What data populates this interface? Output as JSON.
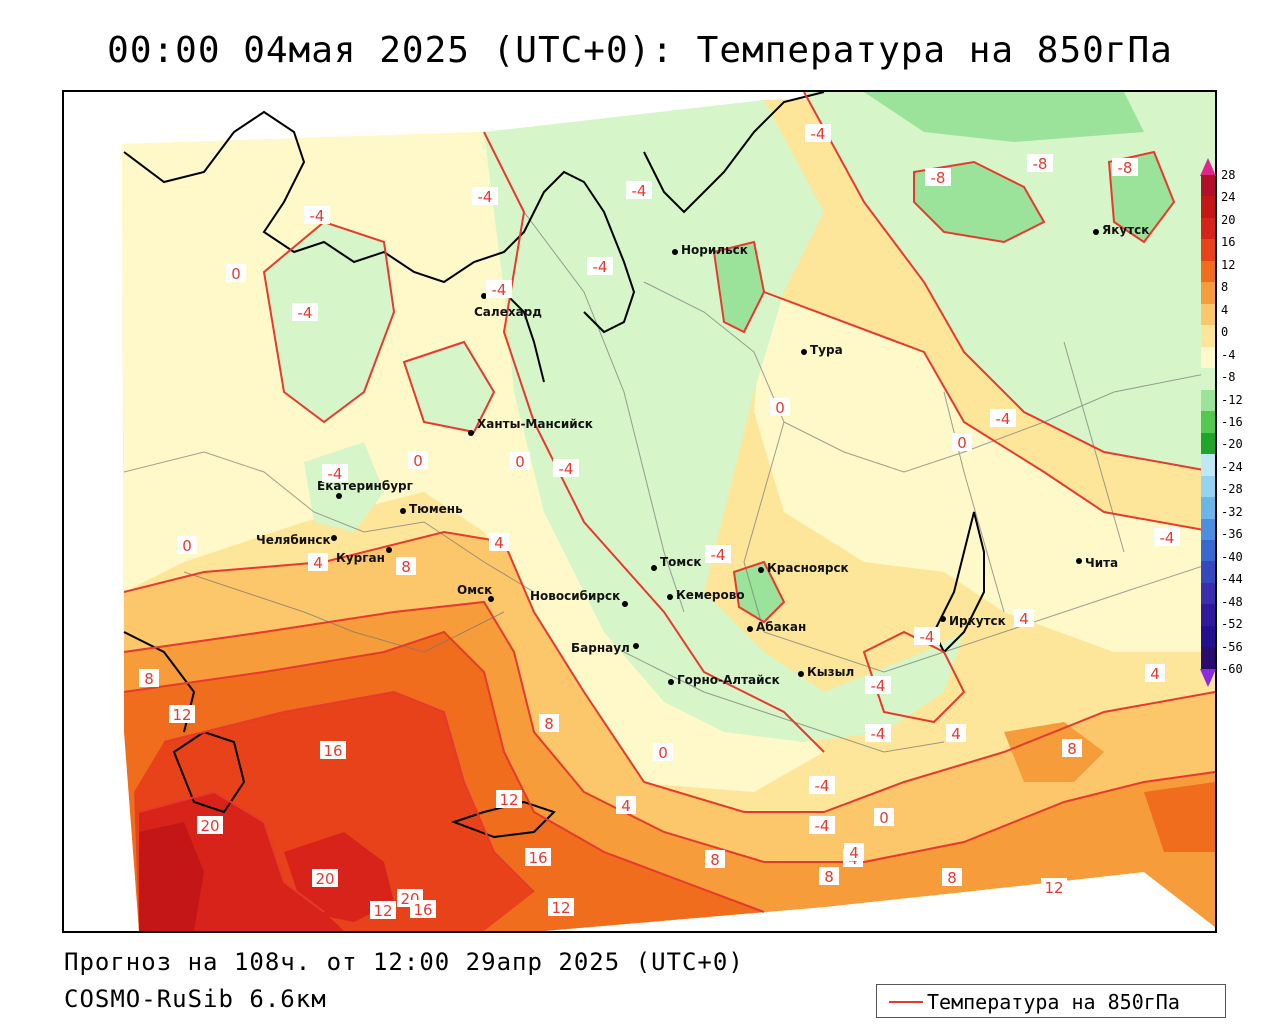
{
  "title": "00:00 04мая 2025 (UTC+0): Температура на 850гПа",
  "footer": {
    "forecast": "Прогноз на 108ч. от 12:00 29апр 2025 (UTC+0)",
    "model": "COSMO-RuSib 6.6км"
  },
  "legend": {
    "label": "Температура на 850гПа",
    "line_color": "#e63a2e"
  },
  "colorbar": {
    "labels": [
      "28",
      "24",
      "20",
      "16",
      "12",
      "8",
      "4",
      "0",
      "-4",
      "-8",
      "-12",
      "-16",
      "-20",
      "-24",
      "-28",
      "-32",
      "-36",
      "-40",
      "-44",
      "-48",
      "-52",
      "-56",
      "-60"
    ],
    "colors": [
      "#b0102a",
      "#c41616",
      "#d8231a",
      "#e8421a",
      "#f06d1e",
      "#f69c3a",
      "#fcc66a",
      "#fde69a",
      "#fff8c8",
      "#d6f5c8",
      "#9be39a",
      "#52c84e",
      "#1fa52a",
      "#bfe8f7",
      "#95d3f2",
      "#6bb5ea",
      "#4a8fe0",
      "#3769d0",
      "#3548c0",
      "#3a2eb0",
      "#3018a0",
      "#22108e",
      "#2a0b6e"
    ],
    "top_arrow_color": "#e0268c",
    "bottom_arrow_color": "#8a2be2"
  },
  "cities": [
    {
      "name": "Норильск"
    },
    {
      "name": "Якутск"
    },
    {
      "name": "Салехард"
    },
    {
      "name": "Тура"
    },
    {
      "name": "Ханты-Мансийск"
    },
    {
      "name": "Екатеринбург"
    },
    {
      "name": "Тюмень"
    },
    {
      "name": "Челябинск"
    },
    {
      "name": "Курган"
    },
    {
      "name": "Омск"
    },
    {
      "name": "Новосибирск"
    },
    {
      "name": "Томск"
    },
    {
      "name": "Кемерово"
    },
    {
      "name": "Красноярск"
    },
    {
      "name": "Абакан"
    },
    {
      "name": "Барнаул"
    },
    {
      "name": "Горно-Алтайск"
    },
    {
      "name": "Кызыл"
    },
    {
      "name": "Иркутск"
    },
    {
      "name": "Чита"
    }
  ],
  "contour_labels": [
    {
      "text": "-8"
    },
    {
      "text": "-8"
    },
    {
      "text": "-8"
    },
    {
      "text": "-4"
    },
    {
      "text": "-4"
    },
    {
      "text": "-4"
    },
    {
      "text": "-4"
    },
    {
      "text": "-4"
    },
    {
      "text": "0"
    },
    {
      "text": "-4"
    },
    {
      "text": "-4"
    },
    {
      "text": "0"
    },
    {
      "text": "0"
    },
    {
      "text": "0"
    },
    {
      "text": "-4"
    },
    {
      "text": "-4"
    },
    {
      "text": "0"
    },
    {
      "text": "-4"
    },
    {
      "text": "4"
    },
    {
      "text": "8"
    },
    {
      "text": "4"
    },
    {
      "text": "8"
    },
    {
      "text": "12"
    },
    {
      "text": "16"
    },
    {
      "text": "20"
    },
    {
      "text": "20"
    },
    {
      "text": "20"
    },
    {
      "text": "12"
    },
    {
      "text": "16"
    },
    {
      "text": "12"
    },
    {
      "text": "16"
    },
    {
      "text": "12"
    },
    {
      "text": "8"
    },
    {
      "text": "4"
    },
    {
      "text": "8"
    },
    {
      "text": "4"
    },
    {
      "text": "8"
    },
    {
      "text": "4"
    },
    {
      "text": "8"
    },
    {
      "text": "12"
    },
    {
      "text": "8"
    },
    {
      "text": "4"
    },
    {
      "text": "-4"
    },
    {
      "text": "-4"
    },
    {
      "text": "-4"
    },
    {
      "text": "0"
    },
    {
      "text": "4"
    },
    {
      "text": "0"
    },
    {
      "text": "-4"
    },
    {
      "text": "-4"
    },
    {
      "text": "0"
    },
    {
      "text": "4"
    },
    {
      "text": "-4"
    },
    {
      "text": "-4"
    }
  ]
}
